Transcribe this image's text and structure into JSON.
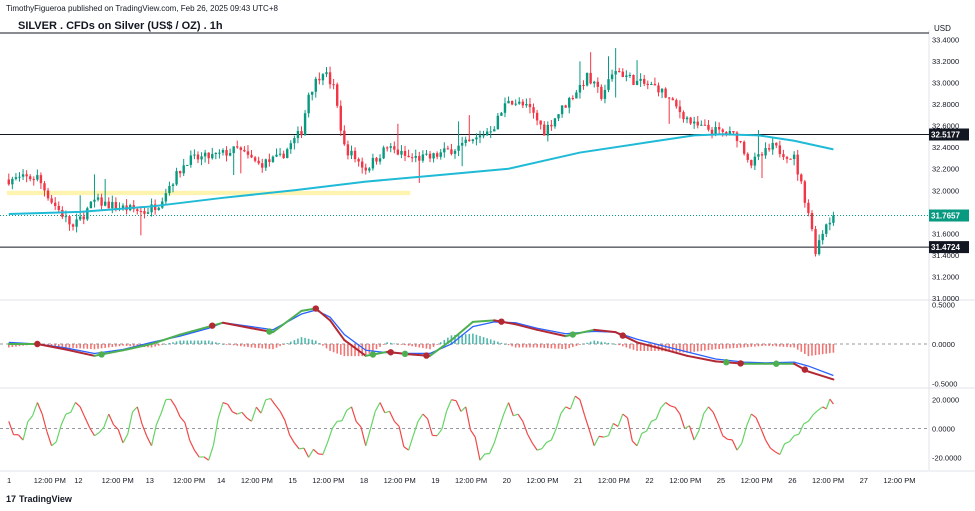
{
  "publisher_line": "TimothyFigueroa published on TradingView.com, Feb 26, 2025 09:43 UTC+8",
  "brand": {
    "logo_mark": "17",
    "name": "TradingView"
  },
  "chart_data": {
    "type": "candlestick",
    "title": "SILVER . CFDs on Silver (US$ / OZ) . 1h",
    "currency": "USD",
    "price_axis": {
      "ticks": [
        "33.4000",
        "33.2000",
        "33.0000",
        "32.8000",
        "32.6000",
        "32.4000",
        "32.2000",
        "32.0000",
        "31.8000",
        "31.6000",
        "31.4000",
        "31.2000",
        "31.0000"
      ],
      "ylim": [
        31.0,
        33.46
      ]
    },
    "price_labels": [
      {
        "label": "32.5177",
        "value": 32.5177,
        "style": "line"
      },
      {
        "label": "31.7657",
        "value": 31.7657,
        "style": "last"
      },
      {
        "label": "31.4724",
        "value": 31.4724,
        "style": "line"
      }
    ],
    "horizontal_lines": [
      33.46,
      32.5177,
      31.4724
    ],
    "support_zone": {
      "from": 31.955,
      "to": 31.995
    },
    "colors": {
      "up": "#089981",
      "down": "#f23645",
      "ma": "#1fbad6",
      "zone": "#fff3b0",
      "macd_fast": "#b22833",
      "macd_slow": "#2962ff",
      "macd_green": "#4caf50",
      "hist_up": "#26a69a",
      "hist_down": "#ef5350",
      "osc_up": "#66d466",
      "osc_down": "#f04848",
      "dot_red": "#b22833",
      "dot_green": "#4caf50"
    },
    "candle_count": 232,
    "price_path": [
      [
        0,
        32.1
      ],
      [
        8,
        32.12
      ],
      [
        12,
        31.9
      ],
      [
        18,
        31.65
      ],
      [
        24,
        31.9
      ],
      [
        30,
        31.85
      ],
      [
        38,
        31.8
      ],
      [
        42,
        31.88
      ],
      [
        44,
        32.0
      ],
      [
        50,
        32.28
      ],
      [
        58,
        32.32
      ],
      [
        64,
        32.38
      ],
      [
        70,
        32.24
      ],
      [
        76,
        32.3
      ],
      [
        82,
        32.55
      ],
      [
        84,
        32.9
      ],
      [
        88,
        33.12
      ],
      [
        91,
        32.95
      ],
      [
        94,
        32.4
      ],
      [
        100,
        32.2
      ],
      [
        106,
        32.4
      ],
      [
        112,
        32.3
      ],
      [
        118,
        32.3
      ],
      [
        124,
        32.38
      ],
      [
        130,
        32.45
      ],
      [
        136,
        32.6
      ],
      [
        140,
        32.85
      ],
      [
        146,
        32.75
      ],
      [
        150,
        32.55
      ],
      [
        156,
        32.8
      ],
      [
        162,
        33.05
      ],
      [
        166,
        32.88
      ],
      [
        170,
        33.12
      ],
      [
        176,
        33.0
      ],
      [
        182,
        32.95
      ],
      [
        186,
        32.8
      ],
      [
        192,
        32.6
      ],
      [
        198,
        32.55
      ],
      [
        204,
        32.5
      ],
      [
        208,
        32.25
      ],
      [
        214,
        32.4
      ],
      [
        220,
        32.3
      ],
      [
        224,
        31.8
      ],
      [
        226,
        31.45
      ],
      [
        229,
        31.7
      ],
      [
        231,
        31.7657
      ]
    ],
    "moving_average": [
      [
        0,
        31.78
      ],
      [
        20,
        31.8
      ],
      [
        40,
        31.85
      ],
      [
        60,
        31.93
      ],
      [
        80,
        32.0
      ],
      [
        100,
        32.08
      ],
      [
        120,
        32.14
      ],
      [
        140,
        32.2
      ],
      [
        160,
        32.35
      ],
      [
        180,
        32.45
      ],
      [
        192,
        32.51
      ],
      [
        200,
        32.52
      ],
      [
        210,
        32.51
      ],
      [
        220,
        32.46
      ],
      [
        231,
        32.38
      ]
    ],
    "x_axis": {
      "labels": [
        {
          "text": "1",
          "i": 0
        },
        {
          "text": "12:00 PM",
          "i": 12
        },
        {
          "text": "12",
          "i": 20
        },
        {
          "text": "12:00 PM",
          "i": 31
        },
        {
          "text": "13",
          "i": 40
        },
        {
          "text": "12:00 PM",
          "i": 51
        },
        {
          "text": "14",
          "i": 60
        },
        {
          "text": "12:00 PM",
          "i": 70
        },
        {
          "text": "15",
          "i": 80
        },
        {
          "text": "12:00 PM",
          "i": 90
        },
        {
          "text": "18",
          "i": 100
        },
        {
          "text": "12:00 PM",
          "i": 110
        },
        {
          "text": "19",
          "i": 120
        },
        {
          "text": "12:00 PM",
          "i": 130
        },
        {
          "text": "20",
          "i": 140
        },
        {
          "text": "12:00 PM",
          "i": 150
        },
        {
          "text": "21",
          "i": 160
        },
        {
          "text": "12:00 PM",
          "i": 170
        },
        {
          "text": "22",
          "i": 180
        },
        {
          "text": "12:00 PM",
          "i": 190
        },
        {
          "text": "25",
          "i": 200
        },
        {
          "text": "12:00 PM",
          "i": 210
        },
        {
          "text": "26",
          "i": 220
        },
        {
          "text": "12:00 PM",
          "i": 230
        },
        {
          "text": "27",
          "i": 240
        },
        {
          "text": "12:00 PM",
          "i": 250
        }
      ],
      "index_range": [
        0,
        258
      ]
    },
    "macd": {
      "ticks": [
        "0.5000",
        "0.0000",
        "-0.5000"
      ],
      "ylim": [
        -0.52,
        0.52
      ],
      "fast": [
        [
          0,
          0.0
        ],
        [
          8,
          0.0
        ],
        [
          16,
          -0.07
        ],
        [
          24,
          -0.15
        ],
        [
          32,
          -0.08
        ],
        [
          40,
          0.0
        ],
        [
          48,
          0.12
        ],
        [
          56,
          0.22
        ],
        [
          60,
          0.27
        ],
        [
          68,
          0.2
        ],
        [
          74,
          0.15
        ],
        [
          82,
          0.42
        ],
        [
          86,
          0.45
        ],
        [
          90,
          0.3
        ],
        [
          94,
          0.05
        ],
        [
          100,
          -0.15
        ],
        [
          106,
          -0.1
        ],
        [
          112,
          -0.13
        ],
        [
          118,
          -0.15
        ],
        [
          124,
          0.05
        ],
        [
          130,
          0.28
        ],
        [
          136,
          0.3
        ],
        [
          142,
          0.25
        ],
        [
          148,
          0.18
        ],
        [
          156,
          0.1
        ],
        [
          164,
          0.18
        ],
        [
          170,
          0.15
        ],
        [
          176,
          0.02
        ],
        [
          182,
          -0.05
        ],
        [
          190,
          -0.15
        ],
        [
          198,
          -0.22
        ],
        [
          206,
          -0.25
        ],
        [
          212,
          -0.25
        ],
        [
          220,
          -0.25
        ],
        [
          224,
          -0.35
        ],
        [
          231,
          -0.45
        ]
      ],
      "slow": [
        [
          0,
          0.02
        ],
        [
          8,
          0.0
        ],
        [
          16,
          -0.05
        ],
        [
          24,
          -0.12
        ],
        [
          32,
          -0.07
        ],
        [
          40,
          0.02
        ],
        [
          48,
          0.1
        ],
        [
          56,
          0.2
        ],
        [
          60,
          0.27
        ],
        [
          68,
          0.22
        ],
        [
          74,
          0.18
        ],
        [
          82,
          0.38
        ],
        [
          86,
          0.43
        ],
        [
          90,
          0.34
        ],
        [
          94,
          0.12
        ],
        [
          100,
          -0.08
        ],
        [
          106,
          -0.11
        ],
        [
          112,
          -0.12
        ],
        [
          118,
          -0.12
        ],
        [
          124,
          0.0
        ],
        [
          130,
          0.22
        ],
        [
          136,
          0.28
        ],
        [
          142,
          0.27
        ],
        [
          148,
          0.2
        ],
        [
          156,
          0.13
        ],
        [
          164,
          0.16
        ],
        [
          170,
          0.15
        ],
        [
          176,
          0.06
        ],
        [
          182,
          -0.01
        ],
        [
          190,
          -0.1
        ],
        [
          198,
          -0.19
        ],
        [
          206,
          -0.23
        ],
        [
          212,
          -0.24
        ],
        [
          220,
          -0.23
        ],
        [
          224,
          -0.28
        ],
        [
          231,
          -0.4
        ]
      ],
      "dots": [
        {
          "i": 8,
          "color": "red"
        },
        {
          "i": 26,
          "color": "green"
        },
        {
          "i": 57,
          "color": "red"
        },
        {
          "i": 73,
          "color": "green"
        },
        {
          "i": 86,
          "color": "red"
        },
        {
          "i": 102,
          "color": "green"
        },
        {
          "i": 107,
          "color": "red"
        },
        {
          "i": 111,
          "color": "green"
        },
        {
          "i": 117,
          "color": "red"
        },
        {
          "i": 138,
          "color": "red"
        },
        {
          "i": 158,
          "color": "green"
        },
        {
          "i": 172,
          "color": "red"
        },
        {
          "i": 201,
          "color": "green"
        },
        {
          "i": 205,
          "color": "red"
        },
        {
          "i": 215,
          "color": "green"
        },
        {
          "i": 223,
          "color": "red"
        }
      ]
    },
    "oscillator": {
      "ticks": [
        "20.0000",
        "0.0000",
        "-20.0000"
      ],
      "ylim": [
        -26,
        26
      ],
      "path": [
        [
          0,
          5
        ],
        [
          4,
          -8
        ],
        [
          8,
          18
        ],
        [
          12,
          -12
        ],
        [
          16,
          10
        ],
        [
          20,
          15
        ],
        [
          24,
          -5
        ],
        [
          28,
          10
        ],
        [
          32,
          -10
        ],
        [
          36,
          15
        ],
        [
          40,
          -12
        ],
        [
          44,
          20
        ],
        [
          48,
          8
        ],
        [
          52,
          -15
        ],
        [
          56,
          -22
        ],
        [
          60,
          18
        ],
        [
          64,
          10
        ],
        [
          68,
          5
        ],
        [
          72,
          20
        ],
        [
          76,
          12
        ],
        [
          80,
          -10
        ],
        [
          84,
          -20
        ],
        [
          88,
          -18
        ],
        [
          92,
          5
        ],
        [
          96,
          15
        ],
        [
          100,
          -12
        ],
        [
          104,
          18
        ],
        [
          108,
          5
        ],
        [
          112,
          -15
        ],
        [
          116,
          10
        ],
        [
          120,
          -5
        ],
        [
          124,
          20
        ],
        [
          128,
          15
        ],
        [
          132,
          -22
        ],
        [
          136,
          -10
        ],
        [
          140,
          18
        ],
        [
          144,
          5
        ],
        [
          148,
          -15
        ],
        [
          152,
          -8
        ],
        [
          156,
          15
        ],
        [
          160,
          20
        ],
        [
          164,
          -12
        ],
        [
          168,
          -5
        ],
        [
          172,
          10
        ],
        [
          176,
          -12
        ],
        [
          180,
          5
        ],
        [
          184,
          18
        ],
        [
          188,
          10
        ],
        [
          192,
          -8
        ],
        [
          196,
          15
        ],
        [
          200,
          -5
        ],
        [
          204,
          -15
        ],
        [
          208,
          10
        ],
        [
          212,
          -8
        ],
        [
          216,
          -18
        ],
        [
          220,
          -5
        ],
        [
          224,
          5
        ],
        [
          228,
          15
        ],
        [
          231,
          17
        ]
      ]
    }
  }
}
